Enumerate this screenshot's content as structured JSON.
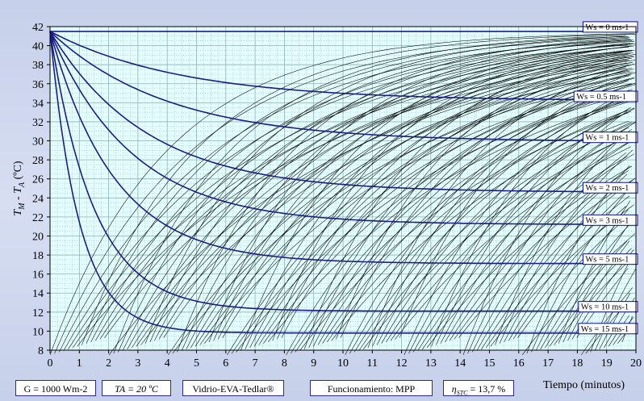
{
  "chart_data": {
    "type": "line",
    "ylabel": "T<sub>M</sub> - T<sub>A</sub> (ºC)",
    "ylabel_parts": {
      "t1": "T",
      "s1": "M",
      "mid": " - ",
      "t2": "T",
      "s2": "A",
      "unit": " (ºC)"
    },
    "xlabel": "Tiempo (minutos)",
    "xlim": [
      0,
      20
    ],
    "ylim": [
      8,
      42
    ],
    "xticks": [
      "0",
      "1",
      "2",
      "3",
      "4",
      "5",
      "6",
      "7",
      "8",
      "9",
      "10",
      "11",
      "12",
      "13",
      "14",
      "15",
      "16",
      "17",
      "18",
      "19",
      "20"
    ],
    "yticks": [
      "8",
      "10",
      "12",
      "14",
      "16",
      "18",
      "20",
      "22",
      "24",
      "26",
      "28",
      "30",
      "32",
      "34",
      "36",
      "38",
      "40",
      "42"
    ],
    "start_value": 41.5,
    "grid": true,
    "series": [
      {
        "name": "Ws = 0 ms-1",
        "end_value": 41.5,
        "tau_min": 0.1
      },
      {
        "name": "Ws = 0.5 ms-1",
        "end_value": 34.2,
        "tau_min": 4.5
      },
      {
        "name": "Ws = 1 ms-1",
        "end_value": 29.9,
        "tau_min": 4.0
      },
      {
        "name": "Ws = 2 ms-1",
        "end_value": 24.6,
        "tau_min": 3.3
      },
      {
        "name": "Ws = 3 ms-1",
        "end_value": 21.2,
        "tau_min": 2.8
      },
      {
        "name": "Ws = 5 ms-1",
        "end_value": 17.1,
        "tau_min": 2.2
      },
      {
        "name": "Ws = 10 ms-1",
        "end_value": 12.1,
        "tau_min": 1.5
      },
      {
        "name": "Ws = 15 ms-1",
        "end_value": 9.8,
        "tau_min": 1.0
      }
    ],
    "colors": {
      "series": "#1b1b8c",
      "family": "#000000",
      "plot_bg": "#e4ffff",
      "grid": "#8fb2b2"
    }
  },
  "params": {
    "irradiance": "G = 1000 Wm-2",
    "ta_label": "TA = 20 ºC",
    "materials": "Vidrio-EVA-Tedlar®",
    "operation": "Funcionamiento: MPP",
    "eta_symbol": "η",
    "eta_sub": "STC",
    "eta_value": " = 13,7 %"
  }
}
